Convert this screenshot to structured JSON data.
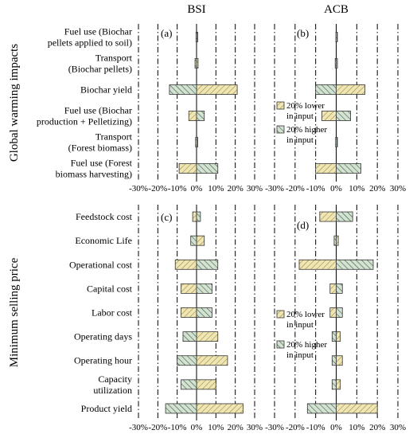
{
  "chart_data": [
    {
      "id": "a",
      "type": "tornado",
      "panel_label": "(a)",
      "column_title": "BSI",
      "group_label": "Global warming impacts",
      "categories": [
        [
          "Fuel use (Biochar",
          "pellets applied to soil)"
        ],
        [
          "Transport",
          "(Biochar pellets)"
        ],
        [
          "Biochar yield"
        ],
        [
          "Fuel use (Biochar",
          "production + Pelletizing)"
        ],
        [
          "Transport",
          "(Forest biomass)"
        ],
        [
          "Fuel use (Forest",
          "biomass harvesting)"
        ]
      ],
      "series": [
        {
          "name": "20% lower in input",
          "values": [
            0.3,
            0.8,
            21,
            -4,
            0.5,
            -9
          ]
        },
        {
          "name": "20% higher in input",
          "values": [
            -0.3,
            -0.8,
            -14,
            4,
            -0.5,
            11
          ]
        }
      ],
      "xlim": [
        -30,
        30
      ],
      "xticks": [
        "-30%",
        "-20%",
        "-10%",
        "0%",
        "10%",
        "20%",
        "30%"
      ],
      "legend": null
    },
    {
      "id": "b",
      "type": "tornado",
      "panel_label": "(b)",
      "column_title": "ACB",
      "group_label": "",
      "categories": [
        [
          ""
        ],
        [
          ""
        ],
        [
          ""
        ],
        [
          ""
        ],
        [
          ""
        ],
        [
          ""
        ]
      ],
      "series": [
        {
          "name": "20% lower in input",
          "values": [
            0.2,
            0.5,
            14,
            -7,
            0.3,
            -10
          ]
        },
        {
          "name": "20% higher in input",
          "values": [
            -0.2,
            -0.5,
            -10,
            7,
            -0.3,
            12
          ]
        }
      ],
      "xlim": [
        -30,
        30
      ],
      "xticks": [
        "-30%",
        "-20%",
        "-10%",
        "0%",
        "10%",
        "20%",
        "30%"
      ],
      "legend": {
        "placement": "left-middle",
        "low": [
          "20% lower",
          "in input"
        ],
        "high": [
          "20% higher",
          "in input"
        ]
      }
    },
    {
      "id": "c",
      "type": "tornado",
      "panel_label": "(c)",
      "column_title": "",
      "group_label": "Minimum selling price",
      "categories": [
        [
          "Feedstock cost"
        ],
        [
          "Economic Life"
        ],
        [
          "Operational cost"
        ],
        [
          "Capital cost"
        ],
        [
          "Labor cost"
        ],
        [
          "Operating days"
        ],
        [
          "Operating hour"
        ],
        [
          "Capacity",
          "utilization"
        ],
        [
          "Product yield"
        ]
      ],
      "series": [
        {
          "name": "20% lower in input",
          "values": [
            -2,
            4,
            -11,
            -8,
            -8,
            11,
            16,
            10,
            24
          ]
        },
        {
          "name": "20% higher in input",
          "values": [
            2,
            -3,
            11,
            8,
            8,
            -7,
            -10,
            -8,
            -16
          ]
        }
      ],
      "xlim": [
        -30,
        30
      ],
      "xticks": [
        "-30%",
        "-20%",
        "-10%",
        "0%",
        "10%",
        "20%",
        "30%"
      ],
      "legend": null
    },
    {
      "id": "d",
      "type": "tornado",
      "panel_label": "(d)",
      "column_title": "",
      "group_label": "",
      "categories": [
        [
          ""
        ],
        [
          ""
        ],
        [
          ""
        ],
        [
          ""
        ],
        [
          ""
        ],
        [
          ""
        ],
        [
          ""
        ],
        [
          ""
        ],
        [
          ""
        ]
      ],
      "series": [
        {
          "name": "20% lower in input",
          "values": [
            -8,
            1,
            -18,
            -3,
            -3,
            2,
            3,
            2,
            20
          ]
        },
        {
          "name": "20% higher in input",
          "values": [
            8,
            -1,
            18,
            3,
            3,
            -2,
            -2,
            -2,
            -14
          ]
        }
      ],
      "xlim": [
        -30,
        30
      ],
      "xticks": [
        "-30%",
        "-20%",
        "-10%",
        "0%",
        "10%",
        "20%",
        "30%"
      ],
      "legend": {
        "placement": "left-lower",
        "low": [
          "20% lower",
          "in input"
        ],
        "high": [
          "20% higher",
          "in input"
        ]
      }
    }
  ],
  "colors": {
    "low_fill": "#efe6b4",
    "low_hatch": "#9a8a4a",
    "high_fill": "#d4e2d4",
    "high_hatch": "#3a5a3a",
    "stroke": "#333333"
  }
}
